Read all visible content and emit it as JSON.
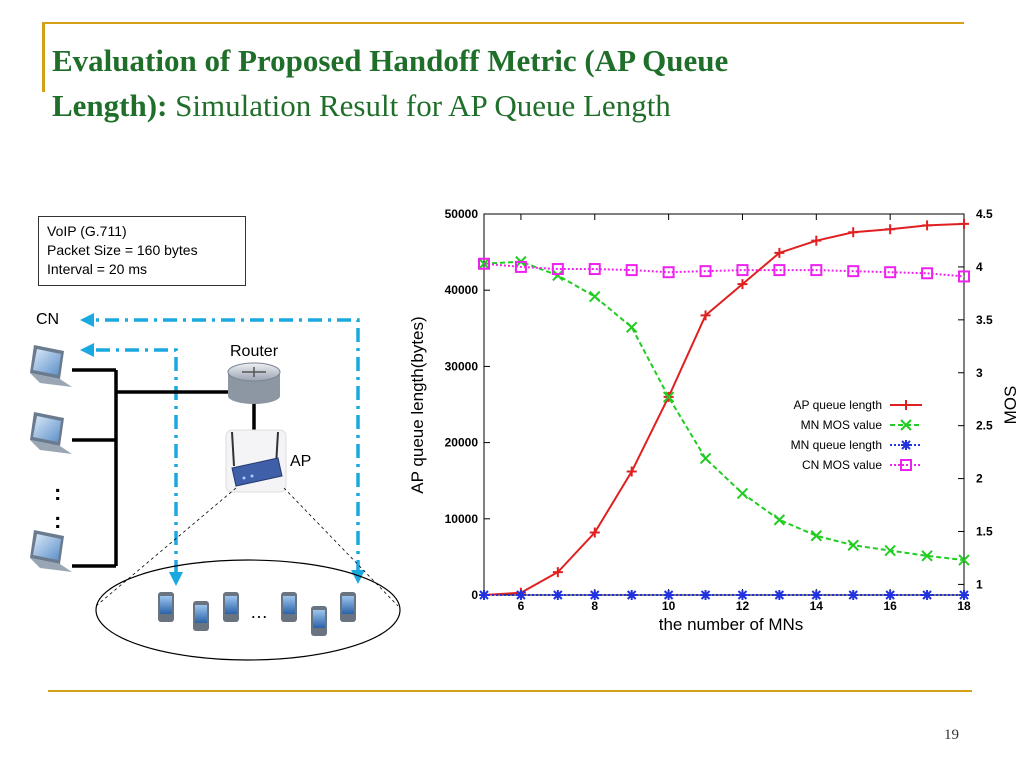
{
  "slide": {
    "title_bold_1": "Evaluation of Proposed Handoff Metric (AP Queue",
    "title_bold_2": "Length):",
    "title_normal": " Simulation Result  for AP Queue Length",
    "page_number": "19"
  },
  "diagram": {
    "info_lines": [
      "VoIP (G.711)",
      "Packet Size = 160 bytes",
      "Interval = 20 ms"
    ],
    "cn_label": "CN",
    "router_label": "Router",
    "ap_label": "AP",
    "ellipsis": "…",
    "dots": ":"
  },
  "chart_data": {
    "type": "line",
    "xlabel": "the number of MNs",
    "ylabel": "AP queue length(bytes)",
    "y2label": "MOS",
    "x": [
      5,
      6,
      7,
      8,
      9,
      10,
      11,
      12,
      13,
      14,
      15,
      16,
      17,
      18
    ],
    "xticks": [
      "6",
      "8",
      "10",
      "12",
      "14",
      "16",
      "18"
    ],
    "xtick_values": [
      6,
      8,
      10,
      12,
      14,
      16,
      18
    ],
    "xlim": [
      5,
      18
    ],
    "ylim": [
      0,
      50000
    ],
    "yticks": [
      "0",
      "10000",
      "20000",
      "30000",
      "40000",
      "50000"
    ],
    "ytick_values": [
      0,
      10000,
      20000,
      30000,
      40000,
      50000
    ],
    "y2lim": [
      0.9,
      4.5
    ],
    "y2ticks": [
      "1",
      "1.5",
      "2",
      "2.5",
      "3",
      "3.5",
      "4",
      "4.5"
    ],
    "y2tick_values": [
      1,
      1.5,
      2,
      2.5,
      3,
      3.5,
      4,
      4.5
    ],
    "grid": false,
    "legend_position": "middle-right",
    "series": [
      {
        "name": "AP queue length",
        "axis": "left",
        "color": "#e02020",
        "dash": "",
        "marker": "plus",
        "values": [
          0,
          300,
          3000,
          8200,
          16200,
          26000,
          36700,
          40800,
          44900,
          46500,
          47600,
          48000,
          48500,
          48700
        ]
      },
      {
        "name": "MN MOS value",
        "axis": "right",
        "color": "#22cc22",
        "dash": "5,3",
        "marker": "x",
        "values": [
          4.03,
          4.05,
          3.92,
          3.72,
          3.43,
          2.77,
          2.19,
          1.86,
          1.61,
          1.46,
          1.37,
          1.32,
          1.27,
          1.23
        ]
      },
      {
        "name": "MN queue length",
        "axis": "left",
        "color": "#2233dd",
        "dash": "2,2",
        "marker": "star",
        "values": [
          0,
          0,
          0,
          0,
          0,
          0,
          0,
          0,
          0,
          0,
          0,
          0,
          0,
          0
        ]
      },
      {
        "name": "CN MOS value",
        "axis": "right",
        "color": "#ee22ee",
        "dash": "2,2",
        "marker": "square",
        "values": [
          4.03,
          4.0,
          3.98,
          3.98,
          3.97,
          3.95,
          3.96,
          3.97,
          3.97,
          3.97,
          3.96,
          3.95,
          3.94,
          3.91
        ]
      }
    ]
  },
  "colors": {
    "title": "#1f6f2a",
    "accent": "#d4a017",
    "diagram_arrow": "#1aa8e0"
  }
}
